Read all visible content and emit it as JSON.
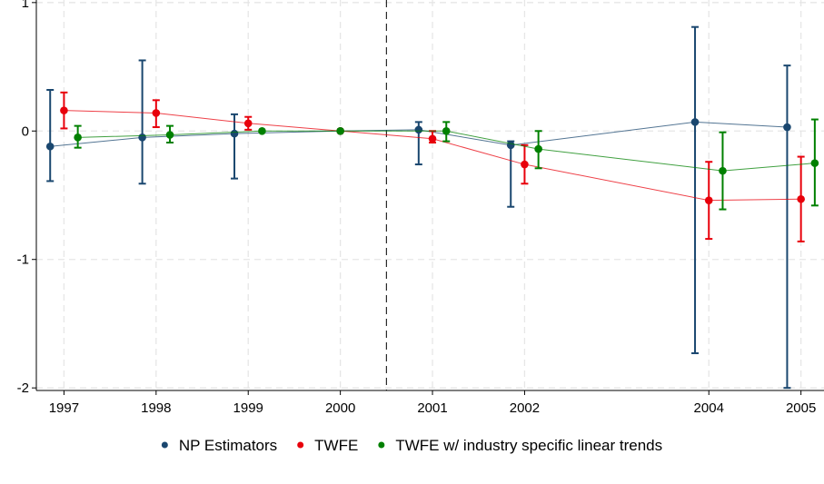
{
  "chart_data": {
    "type": "scatter",
    "title": "",
    "xlabel": "",
    "ylabel": "",
    "xlim": [
      1996.7,
      2005.25
    ],
    "ylim": [
      -2.02,
      1.02
    ],
    "x_ticks": [
      1997,
      1998,
      1999,
      2000,
      2001,
      2002,
      2004,
      2005
    ],
    "x_tick_labels": [
      "1997",
      "1998",
      "1999",
      "2000",
      "2001",
      "2002",
      "2004",
      "2005"
    ],
    "y_ticks": [
      1,
      0,
      -1,
      -2
    ],
    "y_tick_labels": [
      "1",
      "0",
      "-1",
      "-2"
    ],
    "reference_line_x": 2000.5,
    "grid": true,
    "legend_position": "bottom",
    "series": [
      {
        "name": "NP Estimators",
        "color": "#1a476f",
        "x": [
          1996.85,
          1997.85,
          1998.85,
          2000.0,
          2000.85,
          2001.85,
          2003.85,
          2004.85
        ],
        "y": [
          -0.12,
          -0.05,
          -0.02,
          0.0,
          0.01,
          -0.11,
          0.07,
          0.03
        ],
        "ci_low": [
          -0.39,
          -0.41,
          -0.37,
          0.0,
          -0.26,
          -0.59,
          -1.73,
          -2.0
        ],
        "ci_high": [
          0.32,
          0.55,
          0.13,
          0.0,
          0.07,
          -0.08,
          0.81,
          0.51
        ]
      },
      {
        "name": "TWFE",
        "color": "#e8000b",
        "x": [
          1997.0,
          1998.0,
          1999.0,
          2000.0,
          2001.0,
          2002.0,
          2004.0,
          2005.0
        ],
        "y": [
          0.16,
          0.14,
          0.06,
          0.0,
          -0.06,
          -0.26,
          -0.54,
          -0.53
        ],
        "ci_low": [
          0.02,
          0.03,
          0.01,
          0.0,
          -0.09,
          -0.41,
          -0.84,
          -0.86
        ],
        "ci_high": [
          0.3,
          0.24,
          0.11,
          0.0,
          0.0,
          -0.11,
          -0.24,
          -0.2
        ]
      },
      {
        "name": "TWFE w/ industry specific linear trends",
        "color": "#008000",
        "x": [
          1997.15,
          1998.15,
          1999.15,
          2000.0,
          2001.15,
          2002.15,
          2004.15,
          2005.15
        ],
        "y": [
          -0.05,
          -0.03,
          0.0,
          0.0,
          0.0,
          -0.14,
          -0.31,
          -0.25
        ],
        "ci_low": [
          -0.13,
          -0.09,
          0.0,
          0.0,
          -0.08,
          -0.29,
          -0.61,
          -0.58
        ],
        "ci_high": [
          0.04,
          0.04,
          0.0,
          0.0,
          0.07,
          0.0,
          -0.01,
          0.09
        ]
      }
    ]
  }
}
